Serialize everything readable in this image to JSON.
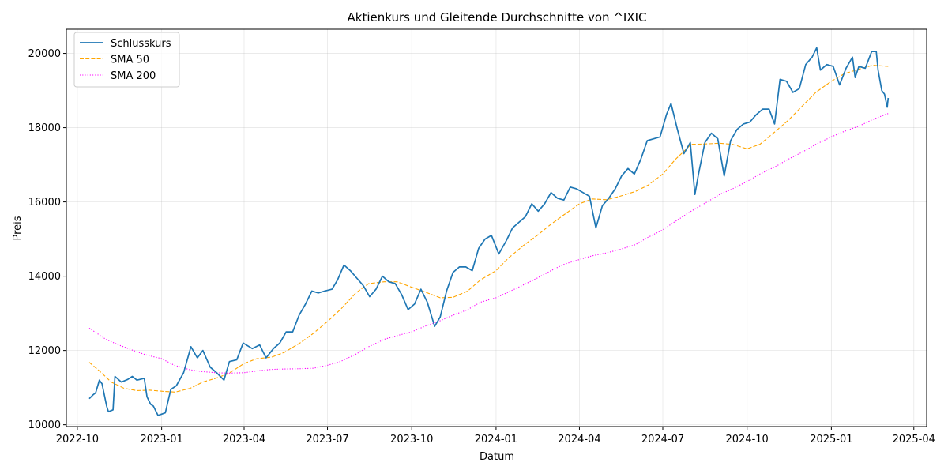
{
  "chart_data": {
    "type": "line",
    "title": "Aktienkurs und Gleitende Durchschnitte von ^IXIC",
    "xlabel": "Datum",
    "ylabel": "Preis",
    "xlim": [
      "2022-09-19",
      "2025-04-15"
    ],
    "ylim": [
      9950,
      20650
    ],
    "grid": true,
    "legend_position": "top-left",
    "x_ticks": [
      {
        "date": "2022-10-01",
        "label": "2022-10"
      },
      {
        "date": "2023-01-01",
        "label": "2023-01"
      },
      {
        "date": "2023-04-01",
        "label": "2023-04"
      },
      {
        "date": "2023-07-01",
        "label": "2023-07"
      },
      {
        "date": "2023-10-01",
        "label": "2023-10"
      },
      {
        "date": "2024-01-01",
        "label": "2024-01"
      },
      {
        "date": "2024-04-01",
        "label": "2024-04"
      },
      {
        "date": "2024-07-01",
        "label": "2024-07"
      },
      {
        "date": "2024-10-01",
        "label": "2024-10"
      },
      {
        "date": "2025-01-01",
        "label": "2025-01"
      },
      {
        "date": "2025-04-01",
        "label": "2025-04"
      }
    ],
    "y_ticks": [
      10000,
      12000,
      14000,
      16000,
      18000,
      20000
    ],
    "series": [
      {
        "name": "Schlusskurs",
        "color": "#1f77b4",
        "style": "solid",
        "points": [
          [
            "2022-10-14",
            10700
          ],
          [
            "2022-10-18",
            10800
          ],
          [
            "2022-10-21",
            10860
          ],
          [
            "2022-10-25",
            11200
          ],
          [
            "2022-10-28",
            11100
          ],
          [
            "2022-11-02",
            10500
          ],
          [
            "2022-11-04",
            10350
          ],
          [
            "2022-11-09",
            10400
          ],
          [
            "2022-11-11",
            11300
          ],
          [
            "2022-11-18",
            11150
          ],
          [
            "2022-11-25",
            11220
          ],
          [
            "2022-11-30",
            11300
          ],
          [
            "2022-12-05",
            11200
          ],
          [
            "2022-12-13",
            11250
          ],
          [
            "2022-12-16",
            10750
          ],
          [
            "2022-12-20",
            10550
          ],
          [
            "2022-12-23",
            10500
          ],
          [
            "2022-12-28",
            10250
          ],
          [
            "2023-01-05",
            10320
          ],
          [
            "2023-01-11",
            10950
          ],
          [
            "2023-01-17",
            11050
          ],
          [
            "2023-01-25",
            11400
          ],
          [
            "2023-02-02",
            12100
          ],
          [
            "2023-02-09",
            11800
          ],
          [
            "2023-02-15",
            12000
          ],
          [
            "2023-02-23",
            11550
          ],
          [
            "2023-03-02",
            11400
          ],
          [
            "2023-03-10",
            11200
          ],
          [
            "2023-03-16",
            11700
          ],
          [
            "2023-03-24",
            11750
          ],
          [
            "2023-03-31",
            12200
          ],
          [
            "2023-04-10",
            12050
          ],
          [
            "2023-04-18",
            12150
          ],
          [
            "2023-04-25",
            11800
          ],
          [
            "2023-05-03",
            12050
          ],
          [
            "2023-05-10",
            12200
          ],
          [
            "2023-05-17",
            12500
          ],
          [
            "2023-05-24",
            12500
          ],
          [
            "2023-05-31",
            12950
          ],
          [
            "2023-06-07",
            13250
          ],
          [
            "2023-06-14",
            13600
          ],
          [
            "2023-06-21",
            13550
          ],
          [
            "2023-06-28",
            13600
          ],
          [
            "2023-07-06",
            13650
          ],
          [
            "2023-07-12",
            13900
          ],
          [
            "2023-07-19",
            14300
          ],
          [
            "2023-07-26",
            14150
          ],
          [
            "2023-08-02",
            13950
          ],
          [
            "2023-08-09",
            13750
          ],
          [
            "2023-08-16",
            13450
          ],
          [
            "2023-08-23",
            13650
          ],
          [
            "2023-08-30",
            14000
          ],
          [
            "2023-09-06",
            13850
          ],
          [
            "2023-09-13",
            13800
          ],
          [
            "2023-09-20",
            13500
          ],
          [
            "2023-09-27",
            13100
          ],
          [
            "2023-10-04",
            13250
          ],
          [
            "2023-10-11",
            13650
          ],
          [
            "2023-10-18",
            13300
          ],
          [
            "2023-10-26",
            12650
          ],
          [
            "2023-11-01",
            12900
          ],
          [
            "2023-11-08",
            13600
          ],
          [
            "2023-11-15",
            14100
          ],
          [
            "2023-11-22",
            14250
          ],
          [
            "2023-11-29",
            14250
          ],
          [
            "2023-12-06",
            14150
          ],
          [
            "2023-12-13",
            14750
          ],
          [
            "2023-12-20",
            15000
          ],
          [
            "2023-12-27",
            15100
          ],
          [
            "2024-01-04",
            14600
          ],
          [
            "2024-01-12",
            14950
          ],
          [
            "2024-01-19",
            15300
          ],
          [
            "2024-01-26",
            15450
          ],
          [
            "2024-02-02",
            15600
          ],
          [
            "2024-02-09",
            15950
          ],
          [
            "2024-02-16",
            15750
          ],
          [
            "2024-02-23",
            15950
          ],
          [
            "2024-03-01",
            16250
          ],
          [
            "2024-03-08",
            16100
          ],
          [
            "2024-03-15",
            16050
          ],
          [
            "2024-03-22",
            16400
          ],
          [
            "2024-03-29",
            16350
          ],
          [
            "2024-04-05",
            16250
          ],
          [
            "2024-04-12",
            16150
          ],
          [
            "2024-04-19",
            15300
          ],
          [
            "2024-04-26",
            15900
          ],
          [
            "2024-05-03",
            16100
          ],
          [
            "2024-05-10",
            16350
          ],
          [
            "2024-05-17",
            16700
          ],
          [
            "2024-05-24",
            16900
          ],
          [
            "2024-05-31",
            16750
          ],
          [
            "2024-06-07",
            17150
          ],
          [
            "2024-06-14",
            17650
          ],
          [
            "2024-06-21",
            17700
          ],
          [
            "2024-06-28",
            17750
          ],
          [
            "2024-07-05",
            18350
          ],
          [
            "2024-07-10",
            18650
          ],
          [
            "2024-07-17",
            17950
          ],
          [
            "2024-07-24",
            17300
          ],
          [
            "2024-07-31",
            17600
          ],
          [
            "2024-08-05",
            16200
          ],
          [
            "2024-08-09",
            16750
          ],
          [
            "2024-08-16",
            17600
          ],
          [
            "2024-08-23",
            17850
          ],
          [
            "2024-08-30",
            17700
          ],
          [
            "2024-09-06",
            16700
          ],
          [
            "2024-09-13",
            17650
          ],
          [
            "2024-09-20",
            17950
          ],
          [
            "2024-09-27",
            18100
          ],
          [
            "2024-10-04",
            18150
          ],
          [
            "2024-10-11",
            18350
          ],
          [
            "2024-10-18",
            18500
          ],
          [
            "2024-10-25",
            18500
          ],
          [
            "2024-10-31",
            18100
          ],
          [
            "2024-11-06",
            19300
          ],
          [
            "2024-11-13",
            19250
          ],
          [
            "2024-11-20",
            18950
          ],
          [
            "2024-11-27",
            19050
          ],
          [
            "2024-12-04",
            19700
          ],
          [
            "2024-12-11",
            19900
          ],
          [
            "2024-12-16",
            20150
          ],
          [
            "2024-12-20",
            19550
          ],
          [
            "2024-12-27",
            19700
          ],
          [
            "2025-01-03",
            19650
          ],
          [
            "2025-01-10",
            19150
          ],
          [
            "2025-01-17",
            19600
          ],
          [
            "2025-01-24",
            19900
          ],
          [
            "2025-01-27",
            19350
          ],
          [
            "2025-01-31",
            19650
          ],
          [
            "2025-02-07",
            19600
          ],
          [
            "2025-02-14",
            20050
          ],
          [
            "2025-02-19",
            20050
          ],
          [
            "2025-02-21",
            19550
          ],
          [
            "2025-02-25",
            19000
          ],
          [
            "2025-02-28",
            18900
          ],
          [
            "2025-03-03",
            18550
          ],
          [
            "2025-03-04",
            18800
          ]
        ]
      },
      {
        "name": "SMA 50",
        "color": "#ffa500",
        "style": "dashed",
        "points": [
          [
            "2022-10-14",
            11680
          ],
          [
            "2022-10-25",
            11450
          ],
          [
            "2022-11-07",
            11150
          ],
          [
            "2022-11-21",
            10980
          ],
          [
            "2022-12-05",
            10920
          ],
          [
            "2022-12-19",
            10930
          ],
          [
            "2023-01-02",
            10900
          ],
          [
            "2023-01-16",
            10880
          ],
          [
            "2023-02-01",
            10980
          ],
          [
            "2023-02-15",
            11150
          ],
          [
            "2023-03-01",
            11250
          ],
          [
            "2023-03-15",
            11380
          ],
          [
            "2023-04-01",
            11650
          ],
          [
            "2023-04-15",
            11780
          ],
          [
            "2023-05-01",
            11820
          ],
          [
            "2023-05-15",
            11950
          ],
          [
            "2023-06-01",
            12200
          ],
          [
            "2023-06-15",
            12450
          ],
          [
            "2023-07-01",
            12780
          ],
          [
            "2023-07-15",
            13100
          ],
          [
            "2023-08-01",
            13550
          ],
          [
            "2023-08-15",
            13800
          ],
          [
            "2023-09-01",
            13850
          ],
          [
            "2023-09-15",
            13850
          ],
          [
            "2023-10-01",
            13700
          ],
          [
            "2023-10-15",
            13580
          ],
          [
            "2023-11-01",
            13420
          ],
          [
            "2023-11-15",
            13430
          ],
          [
            "2023-12-01",
            13600
          ],
          [
            "2023-12-15",
            13900
          ],
          [
            "2024-01-01",
            14150
          ],
          [
            "2024-01-15",
            14500
          ],
          [
            "2024-02-01",
            14850
          ],
          [
            "2024-02-15",
            15100
          ],
          [
            "2024-03-01",
            15400
          ],
          [
            "2024-03-15",
            15650
          ],
          [
            "2024-04-01",
            15950
          ],
          [
            "2024-04-15",
            16080
          ],
          [
            "2024-05-01",
            16060
          ],
          [
            "2024-05-15",
            16150
          ],
          [
            "2024-06-01",
            16280
          ],
          [
            "2024-06-15",
            16450
          ],
          [
            "2024-07-01",
            16750
          ],
          [
            "2024-07-15",
            17150
          ],
          [
            "2024-08-01",
            17550
          ],
          [
            "2024-08-15",
            17560
          ],
          [
            "2024-09-01",
            17580
          ],
          [
            "2024-09-15",
            17550
          ],
          [
            "2024-10-01",
            17430
          ],
          [
            "2024-10-15",
            17550
          ],
          [
            "2024-11-01",
            17900
          ],
          [
            "2024-11-15",
            18200
          ],
          [
            "2024-12-01",
            18600
          ],
          [
            "2024-12-15",
            18950
          ],
          [
            "2025-01-01",
            19250
          ],
          [
            "2025-01-15",
            19450
          ],
          [
            "2025-02-01",
            19580
          ],
          [
            "2025-02-15",
            19680
          ],
          [
            "2025-03-04",
            19650
          ]
        ]
      },
      {
        "name": "SMA 200",
        "color": "#ff00ff",
        "style": "dotted",
        "points": [
          [
            "2022-10-14",
            12600
          ],
          [
            "2022-11-01",
            12300
          ],
          [
            "2022-11-15",
            12150
          ],
          [
            "2022-12-01",
            12000
          ],
          [
            "2022-12-15",
            11880
          ],
          [
            "2023-01-01",
            11780
          ],
          [
            "2023-01-15",
            11600
          ],
          [
            "2023-02-01",
            11480
          ],
          [
            "2023-02-15",
            11430
          ],
          [
            "2023-03-01",
            11400
          ],
          [
            "2023-03-15",
            11390
          ],
          [
            "2023-04-01",
            11400
          ],
          [
            "2023-04-15",
            11450
          ],
          [
            "2023-05-01",
            11490
          ],
          [
            "2023-05-15",
            11500
          ],
          [
            "2023-06-01",
            11510
          ],
          [
            "2023-06-15",
            11520
          ],
          [
            "2023-07-01",
            11600
          ],
          [
            "2023-07-15",
            11700
          ],
          [
            "2023-08-01",
            11900
          ],
          [
            "2023-08-15",
            12100
          ],
          [
            "2023-09-01",
            12300
          ],
          [
            "2023-09-15",
            12400
          ],
          [
            "2023-10-01",
            12500
          ],
          [
            "2023-10-15",
            12650
          ],
          [
            "2023-11-01",
            12800
          ],
          [
            "2023-11-15",
            12950
          ],
          [
            "2023-12-01",
            13100
          ],
          [
            "2023-12-15",
            13300
          ],
          [
            "2024-01-01",
            13420
          ],
          [
            "2024-01-15",
            13580
          ],
          [
            "2024-02-01",
            13780
          ],
          [
            "2024-02-15",
            13950
          ],
          [
            "2024-03-01",
            14150
          ],
          [
            "2024-03-15",
            14320
          ],
          [
            "2024-04-01",
            14450
          ],
          [
            "2024-04-15",
            14550
          ],
          [
            "2024-05-01",
            14630
          ],
          [
            "2024-05-15",
            14720
          ],
          [
            "2024-06-01",
            14850
          ],
          [
            "2024-06-15",
            15050
          ],
          [
            "2024-07-01",
            15250
          ],
          [
            "2024-07-15",
            15480
          ],
          [
            "2024-08-01",
            15750
          ],
          [
            "2024-08-15",
            15950
          ],
          [
            "2024-09-01",
            16200
          ],
          [
            "2024-09-15",
            16350
          ],
          [
            "2024-10-01",
            16550
          ],
          [
            "2024-10-15",
            16750
          ],
          [
            "2024-11-01",
            16950
          ],
          [
            "2024-11-15",
            17150
          ],
          [
            "2024-12-01",
            17350
          ],
          [
            "2024-12-15",
            17550
          ],
          [
            "2025-01-01",
            17750
          ],
          [
            "2025-01-15",
            17900
          ],
          [
            "2025-02-01",
            18050
          ],
          [
            "2025-02-15",
            18220
          ],
          [
            "2025-03-04",
            18380
          ]
        ]
      }
    ]
  }
}
